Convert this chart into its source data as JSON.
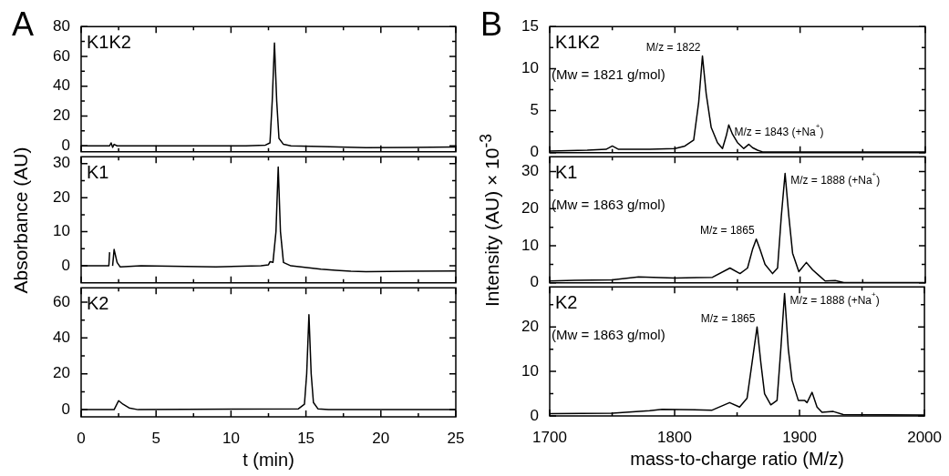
{
  "chart_data": [
    {
      "type": "line",
      "title": "A",
      "tick_labels": "y",
      "xlim": [
        0,
        25
      ],
      "ylim": [
        -4,
        80
      ],
      "xticks": [
        0,
        {
          "value": 2.5,
          "label": null
        },
        5,
        {
          "value": 7.5,
          "label": null
        },
        10,
        {
          "value": 12.5,
          "label": null
        },
        15,
        {
          "value": 17.5,
          "label": null
        },
        20,
        {
          "value": 22.5,
          "label": null
        },
        25
      ],
      "yticks": [
        0,
        {
          "value": 10,
          "label": null
        },
        20,
        {
          "value": 30,
          "label": null
        },
        40,
        {
          "value": 50,
          "label": null
        },
        60,
        {
          "value": 70,
          "label": null
        },
        80
      ],
      "series": [
        {
          "name": "K1K2",
          "color": "#000000",
          "x": [
            0,
            1.9,
            2.0,
            2.1,
            2.2,
            2.4,
            3,
            8,
            11,
            12.3,
            12.6,
            12.75,
            12.9,
            13.05,
            13.2,
            13.5,
            14,
            16,
            19,
            22,
            24.8,
            25
          ],
          "values": [
            0,
            0,
            2,
            -1,
            1,
            0,
            0,
            0,
            0,
            0.5,
            2,
            30,
            69,
            30,
            5,
            1,
            0,
            -0.5,
            -1.2,
            -1,
            -0.8,
            -0.8
          ]
        }
      ]
    },
    {
      "type": "line",
      "ylabel": "Absorbance (AU)",
      "tick_labels": "y",
      "xlim": [
        0,
        25
      ],
      "ylim": [
        -5,
        32
      ],
      "xticks": [
        0,
        {
          "value": 2.5,
          "label": null
        },
        5,
        {
          "value": 7.5,
          "label": null
        },
        10,
        {
          "value": 12.5,
          "label": null
        },
        15,
        {
          "value": 17.5,
          "label": null
        },
        20,
        {
          "value": 22.5,
          "label": null
        },
        25
      ],
      "yticks": [
        0,
        {
          "value": 5,
          "label": null
        },
        10,
        {
          "value": 15,
          "label": null
        },
        20,
        {
          "value": 25,
          "label": null
        },
        30
      ],
      "series": [
        {
          "name": "K1",
          "color": "#000000",
          "x": [
            0,
            1.85,
            1.9,
            1.95,
            2.0,
            2.05,
            2.1,
            2.2,
            2.4,
            2.6,
            4,
            9,
            12,
            12.5,
            12.6,
            12.8,
            13.0,
            13.15,
            13.3,
            13.5,
            14,
            16,
            17,
            18,
            19,
            22,
            25
          ],
          "values": [
            0,
            0,
            4,
            null,
            4,
            null,
            0,
            4.8,
            1,
            -0.3,
            0,
            -0.3,
            0,
            0.3,
            1.2,
            1,
            10,
            29,
            10,
            1,
            0,
            -1,
            -1.3,
            -1.6,
            -1.7,
            -1.6,
            -1.5
          ]
        }
      ]
    },
    {
      "type": "line",
      "xlabel": "t (min)",
      "xlim": [
        0,
        25
      ],
      "ylim": [
        -4,
        68
      ],
      "xticks": [
        0,
        {
          "value": 2.5,
          "label": null
        },
        5,
        {
          "value": 7.5,
          "label": null
        },
        10,
        {
          "value": 12.5,
          "label": null
        },
        15,
        {
          "value": 17.5,
          "label": null
        },
        20,
        {
          "value": 22.5,
          "label": null
        },
        25
      ],
      "yticks": [
        0,
        {
          "value": 10,
          "label": null
        },
        20,
        {
          "value": 30,
          "label": null
        },
        40,
        {
          "value": 50,
          "label": null
        },
        60
      ],
      "series": [
        {
          "name": "K2",
          "color": "#000000",
          "x": [
            0,
            2.2,
            2.5,
            2.8,
            3.2,
            3.8,
            14.5,
            14.9,
            15.05,
            15.2,
            15.35,
            15.5,
            15.8,
            16.5,
            25
          ],
          "values": [
            0,
            0,
            5,
            3,
            1,
            0,
            0.5,
            3,
            20,
            53,
            20,
            4,
            0.5,
            0,
            0
          ]
        }
      ]
    },
    {
      "type": "line",
      "title": "B",
      "tick_labels": "y",
      "xlim": [
        1700,
        2000
      ],
      "ylim": [
        0,
        15
      ],
      "xticks": [
        1700,
        {
          "value": 1750,
          "label": null
        },
        1800,
        {
          "value": 1850,
          "label": null
        },
        1900,
        {
          "value": 1950,
          "label": null
        },
        2000
      ],
      "yticks": [
        0,
        {
          "value": 2.5,
          "label": null
        },
        5,
        {
          "value": 7.5,
          "label": null
        },
        10,
        {
          "value": 12.5,
          "label": null
        },
        15
      ],
      "annotations": [
        "(Mw = 1821 g/mol)",
        {
          "text": "M/z = 1822",
          "x": 1822,
          "y": 11.5
        },
        {
          "text": "M/z = 1843 (+Na$^{+}$)",
          "x": 1843,
          "y": 3.3
        }
      ],
      "x": [
        1700,
        1730,
        1745,
        1750,
        1755,
        1780,
        1800,
        1808,
        1815,
        1819,
        1822,
        1825,
        1829,
        1834,
        1838,
        1841,
        1843,
        1846,
        1850,
        1855,
        1859,
        1862,
        1866,
        1870,
        1900,
        1950,
        2000
      ],
      "series": [
        {
          "name": "K1K2",
          "color": "#000000",
          "values": [
            0.2,
            0.3,
            0.4,
            0.8,
            0.4,
            0.4,
            0.5,
            0.8,
            1.5,
            6,
            11.5,
            7,
            3,
            1.2,
            0.5,
            2,
            3.3,
            2.2,
            1.2,
            0.5,
            1.0,
            0.6,
            0.3,
            0.1,
            0.1,
            0.1,
            0.1
          ]
        }
      ]
    },
    {
      "type": "line",
      "ylabel": "Intensity (AU) × 10$^{-3}$",
      "tick_labels": "y",
      "xlim": [
        1700,
        2000
      ],
      "ylim": [
        0,
        34
      ],
      "xticks": [
        1700,
        {
          "value": 1750,
          "label": null
        },
        1800,
        {
          "value": 1850,
          "label": null
        },
        1900,
        {
          "value": 1950,
          "label": null
        },
        2000
      ],
      "yticks": [
        0,
        {
          "value": 5,
          "label": null
        },
        10,
        {
          "value": 15,
          "label": null
        },
        20,
        {
          "value": 25,
          "label": null
        },
        30
      ],
      "annotations": [
        "(Mw = 1863 g/mol)",
        {
          "text": "M/z = 1865",
          "x": 1865,
          "y": 11.8
        },
        {
          "text": "M/z = 1888 (+Na$^{+}$)",
          "x": 1888,
          "y": 29.5
        }
      ],
      "x": [
        1700,
        1720,
        1750,
        1771,
        1800,
        1830,
        1844,
        1852,
        1858,
        1862,
        1865,
        1868,
        1872,
        1878,
        1882,
        1885,
        1888,
        1891,
        1894,
        1899,
        1905,
        1910,
        1915,
        1920,
        1928,
        1935,
        2000
      ],
      "series": [
        {
          "name": "K1",
          "color": "#000000",
          "values": [
            0.5,
            0.7,
            0.8,
            1.6,
            1.3,
            1.5,
            4,
            2.5,
            4,
            9,
            11.8,
            9,
            5,
            2.5,
            4,
            18,
            29.5,
            18,
            8,
            3,
            5.5,
            3.5,
            2,
            0.5,
            0.6,
            0.1,
            0.1
          ]
        }
      ]
    },
    {
      "type": "line",
      "xlabel": "mass-to-charge ratio (M/z)",
      "xlim": [
        1700,
        2000
      ],
      "ylim": [
        0,
        29
      ],
      "xticks": [
        1700,
        {
          "value": 1750,
          "label": null
        },
        1800,
        {
          "value": 1850,
          "label": null
        },
        1900,
        {
          "value": 1950,
          "label": null
        },
        2000
      ],
      "yticks": [
        0,
        {
          "value": 5,
          "label": null
        },
        10,
        {
          "value": 15,
          "label": null
        },
        20,
        {
          "value": 25,
          "label": null
        }
      ],
      "annotations": [
        "(Mw = 1863 g/mol)",
        {
          "text": "M/z = 1865",
          "x": 1866,
          "y": 20
        },
        {
          "text": "M/z = 1888 (+Na$^{+}$)",
          "x": 1888,
          "y": 27.5
        }
      ],
      "x": [
        1700,
        1750,
        1780,
        1790,
        1830,
        1844,
        1852,
        1858,
        1862,
        1866,
        1869,
        1872,
        1877,
        1882,
        1885,
        1888,
        1891,
        1894,
        1899,
        1904,
        1906,
        1910,
        1914,
        1918,
        1927,
        1935,
        2000
      ],
      "series": [
        {
          "name": "K2",
          "color": "#000000",
          "values": [
            0.5,
            0.6,
            1.2,
            1.5,
            1.3,
            3,
            2,
            4,
            12,
            20,
            12,
            5,
            2.5,
            3.5,
            15,
            27.5,
            15,
            8,
            3.5,
            3.5,
            3,
            5.3,
            2,
            0.8,
            1,
            0.3,
            0.2
          ]
        }
      ]
    }
  ]
}
